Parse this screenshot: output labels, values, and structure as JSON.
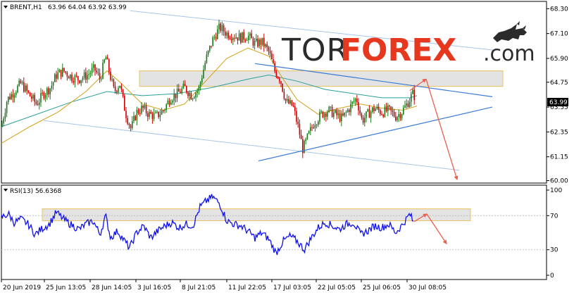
{
  "header": {
    "symbol": "BRENT,H1",
    "ohlc": "63.96 64.04 63.92 63.99",
    "rsi_label": "RSI(13) 56.6368"
  },
  "logo": {
    "tor": "TOR",
    "forex": "FOREX",
    "com": ".com"
  },
  "current_price_label": "63.99",
  "colors": {
    "bull": "#1a7a1a",
    "bear": "#cc0000",
    "ma_fast": "#d4a017",
    "ma_slow": "#2aa198",
    "channel": "#a9c4e8",
    "trend": "#3b7bd4",
    "arrow": "#e8604c",
    "rsi": "#1010ee",
    "zone_fill": "#d9d9d9",
    "zone_border": "#e8c060",
    "logo_red": "#e6381f"
  },
  "chart_data": [
    {
      "type": "candlestick",
      "title": "BRENT,H1",
      "ylim": [
        59.95,
        68.55
      ],
      "y_ticks": [
        "68.30",
        "67.10",
        "65.90",
        "64.75",
        "63.55",
        "62.35",
        "61.15",
        "60.00"
      ],
      "x_ticks": [
        "20 Jun 2019",
        "25 Jun 13:05",
        "28 Jun 14:05",
        "3 Jul 16:05",
        "8 Jul 21:05",
        "11 Jul 22:05",
        "17 Jul 03:05",
        "22 Jul 05:05",
        "25 Jul 06:05",
        "30 Jul 08:05"
      ],
      "last_price": 63.99,
      "close_path": [
        [
          0,
          62.6
        ],
        [
          8,
          63.9
        ],
        [
          18,
          64.3
        ],
        [
          28,
          64.7
        ],
        [
          38,
          64.2
        ],
        [
          50,
          63.7
        ],
        [
          60,
          64.2
        ],
        [
          70,
          64.5
        ],
        [
          78,
          65.1
        ],
        [
          88,
          65.3
        ],
        [
          100,
          65.0
        ],
        [
          110,
          64.9
        ],
        [
          122,
          65.1
        ],
        [
          132,
          65.4
        ],
        [
          140,
          64.9
        ],
        [
          148,
          66.0
        ],
        [
          155,
          65.0
        ],
        [
          160,
          64.3
        ],
        [
          168,
          64.7
        ],
        [
          176,
          63.3
        ],
        [
          184,
          62.5
        ],
        [
          192,
          63.3
        ],
        [
          200,
          63.5
        ],
        [
          210,
          63.2
        ],
        [
          220,
          63.1
        ],
        [
          230,
          63.4
        ],
        [
          240,
          64.0
        ],
        [
          250,
          64.2
        ],
        [
          260,
          64.5
        ],
        [
          270,
          64.1
        ],
        [
          280,
          64.4
        ],
        [
          290,
          65.8
        ],
        [
          300,
          66.8
        ],
        [
          310,
          67.4
        ],
        [
          320,
          67.1
        ],
        [
          330,
          67.0
        ],
        [
          340,
          66.9
        ],
        [
          350,
          67.0
        ],
        [
          360,
          66.6
        ],
        [
          370,
          66.7
        ],
        [
          380,
          66.2
        ],
        [
          388,
          65.3
        ],
        [
          396,
          64.9
        ],
        [
          404,
          63.8
        ],
        [
          414,
          63.6
        ],
        [
          422,
          62.5
        ],
        [
          428,
          61.5
        ],
        [
          436,
          62.2
        ],
        [
          444,
          62.8
        ],
        [
          454,
          63.2
        ],
        [
          464,
          63.4
        ],
        [
          474,
          63.2
        ],
        [
          484,
          63.0
        ],
        [
          494,
          63.5
        ],
        [
          504,
          64.0
        ],
        [
          512,
          62.9
        ],
        [
          520,
          63.2
        ],
        [
          530,
          63.5
        ],
        [
          540,
          63.3
        ],
        [
          550,
          63.4
        ],
        [
          560,
          63.1
        ],
        [
          568,
          63.3
        ],
        [
          576,
          63.7
        ],
        [
          584,
          64.2
        ],
        [
          588,
          63.99
        ]
      ],
      "ma_fast": [
        [
          0,
          61.8
        ],
        [
          40,
          62.6
        ],
        [
          80,
          63.3
        ],
        [
          120,
          64.3
        ],
        [
          150,
          65.3
        ],
        [
          170,
          64.7
        ],
        [
          200,
          63.7
        ],
        [
          230,
          63.4
        ],
        [
          260,
          63.7
        ],
        [
          290,
          64.8
        ],
        [
          320,
          65.9
        ],
        [
          350,
          66.4
        ],
        [
          380,
          66.0
        ],
        [
          400,
          64.9
        ],
        [
          420,
          63.9
        ],
        [
          450,
          63.2
        ],
        [
          480,
          63.5
        ],
        [
          510,
          63.7
        ],
        [
          540,
          63.5
        ],
        [
          570,
          63.4
        ],
        [
          590,
          63.6
        ]
      ],
      "ma_slow": [
        [
          0,
          62.6
        ],
        [
          50,
          63.2
        ],
        [
          100,
          63.8
        ],
        [
          150,
          64.3
        ],
        [
          200,
          64.1
        ],
        [
          250,
          64.2
        ],
        [
          300,
          64.5
        ],
        [
          350,
          64.9
        ],
        [
          380,
          65.1
        ],
        [
          420,
          64.8
        ],
        [
          460,
          64.4
        ],
        [
          500,
          64.2
        ],
        [
          540,
          64.0
        ],
        [
          580,
          64.0
        ],
        [
          590,
          64.1
        ]
      ],
      "resistance_zone": [
        64.55,
        65.3
      ],
      "channel_upper": [
        [
          183,
          68.2
        ],
        [
          700,
          66.3
        ]
      ],
      "channel_lower": [
        [
          60,
          62.9
        ],
        [
          650,
          60.5
        ]
      ],
      "triangle_upper": [
        [
          360,
          65.65
        ],
        [
          697,
          64.05
        ]
      ],
      "triangle_lower": [
        [
          365,
          60.95
        ],
        [
          697,
          63.55
        ]
      ],
      "forecast_arrows": [
        [
          [
            580,
            64.35
          ],
          [
            603,
            64.9
          ]
        ],
        [
          [
            603,
            64.9
          ],
          [
            647,
            60.05
          ]
        ]
      ]
    },
    {
      "type": "line",
      "title": "RSI(13) 56.6368",
      "ylim": [
        0,
        100
      ],
      "y_ticks": [
        "100",
        "70",
        "30",
        "0"
      ],
      "zone": [
        64,
        78
      ],
      "values": [
        [
          0,
          68
        ],
        [
          10,
          72
        ],
        [
          18,
          62
        ],
        [
          28,
          66
        ],
        [
          38,
          60
        ],
        [
          48,
          48
        ],
        [
          58,
          55
        ],
        [
          68,
          60
        ],
        [
          78,
          74
        ],
        [
          88,
          66
        ],
        [
          98,
          60
        ],
        [
          110,
          54
        ],
        [
          120,
          60
        ],
        [
          130,
          64
        ],
        [
          140,
          48
        ],
        [
          148,
          70
        ],
        [
          155,
          44
        ],
        [
          165,
          52
        ],
        [
          175,
          40
        ],
        [
          182,
          32
        ],
        [
          192,
          50
        ],
        [
          202,
          58
        ],
        [
          212,
          44
        ],
        [
          222,
          52
        ],
        [
          232,
          58
        ],
        [
          242,
          62
        ],
        [
          252,
          56
        ],
        [
          262,
          60
        ],
        [
          272,
          58
        ],
        [
          282,
          80
        ],
        [
          292,
          88
        ],
        [
          300,
          92
        ],
        [
          310,
          84
        ],
        [
          320,
          64
        ],
        [
          330,
          60
        ],
        [
          340,
          58
        ],
        [
          350,
          52
        ],
        [
          360,
          44
        ],
        [
          370,
          50
        ],
        [
          380,
          42
        ],
        [
          390,
          26
        ],
        [
          400,
          40
        ],
        [
          410,
          46
        ],
        [
          420,
          40
        ],
        [
          430,
          30
        ],
        [
          440,
          44
        ],
        [
          450,
          56
        ],
        [
          460,
          62
        ],
        [
          470,
          58
        ],
        [
          480,
          54
        ],
        [
          490,
          60
        ],
        [
          500,
          62
        ],
        [
          510,
          48
        ],
        [
          520,
          52
        ],
        [
          530,
          58
        ],
        [
          540,
          56
        ],
        [
          550,
          60
        ],
        [
          560,
          50
        ],
        [
          570,
          60
        ],
        [
          580,
          72
        ],
        [
          585,
          62
        ]
      ],
      "forecast_arrows": [
        [
          [
            586,
            63
          ],
          [
            604,
            72
          ]
        ],
        [
          [
            604,
            72
          ],
          [
            632,
            37
          ]
        ]
      ]
    }
  ]
}
